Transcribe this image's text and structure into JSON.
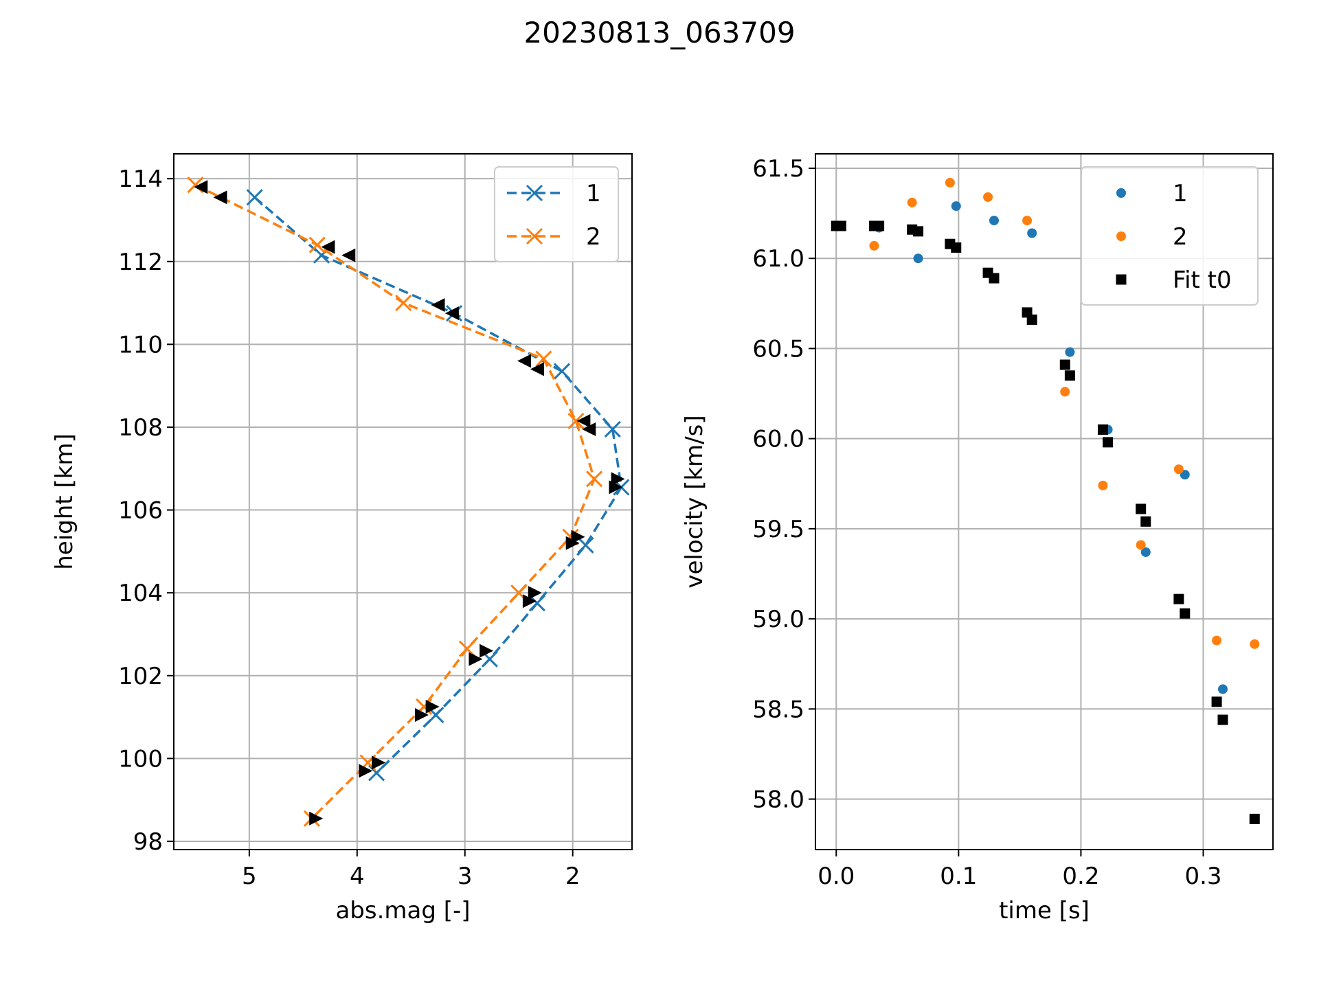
{
  "figure": {
    "title": "20230813_063709"
  },
  "colors": {
    "series1": "#1f77b4",
    "series2": "#ff7f0e",
    "fit": "#000000",
    "grid": "#b0b0b0"
  },
  "chart_data": [
    {
      "type": "line",
      "title": "",
      "xlabel": "abs.mag [-]",
      "ylabel": "height [km]",
      "xlim": [
        5.7,
        1.45
      ],
      "ylim": [
        97.8,
        114.6
      ],
      "x_inverted": true,
      "xticks": [
        5,
        4,
        3,
        2
      ],
      "xtick_labels": [
        "5",
        "4",
        "3",
        "2"
      ],
      "yticks": [
        98,
        100,
        102,
        104,
        106,
        108,
        110,
        112,
        114
      ],
      "ytick_labels": [
        "98",
        "100",
        "102",
        "104",
        "106",
        "108",
        "110",
        "112",
        "114"
      ],
      "grid": true,
      "legend_position": "upper right",
      "series": [
        {
          "name": "1",
          "style": "dashed line with x markers",
          "color": "#1f77b4",
          "x": [
            4.95,
            4.33,
            3.1,
            2.1,
            1.63,
            1.55,
            1.88,
            2.33,
            2.77,
            3.27,
            3.82
          ],
          "y": [
            113.55,
            112.15,
            110.75,
            109.35,
            107.95,
            106.55,
            105.15,
            103.75,
            102.4,
            101.05,
            99.65
          ]
        },
        {
          "name": "2",
          "style": "dashed line with x markers",
          "color": "#ff7f0e",
          "x": [
            5.5,
            4.37,
            3.57,
            2.27,
            1.97,
            1.8,
            2.02,
            2.5,
            2.98,
            3.38,
            3.9,
            4.42
          ],
          "y": [
            113.85,
            112.4,
            111.0,
            109.65,
            108.15,
            106.75,
            105.35,
            104.0,
            102.65,
            101.25,
            99.9,
            98.55
          ]
        },
        {
          "name": "",
          "style": "left-pointing triangle markers",
          "color": "#000000",
          "x": [
            5.45,
            5.27,
            4.27,
            4.08,
            3.25,
            3.12,
            2.45,
            2.33,
            1.9,
            1.85
          ],
          "y": [
            113.8,
            113.55,
            112.35,
            112.15,
            110.95,
            110.75,
            109.6,
            109.4,
            108.15,
            107.95
          ]
        },
        {
          "name": "",
          "style": "right-pointing triangle markers",
          "color": "#000000",
          "x": [
            1.58,
            1.6,
            1.95,
            2.0,
            2.35,
            2.4,
            2.8,
            2.9,
            3.3,
            3.4,
            3.8,
            3.92,
            4.38
          ],
          "y": [
            106.75,
            106.55,
            105.35,
            105.2,
            104.0,
            103.8,
            102.6,
            102.4,
            101.25,
            101.05,
            99.9,
            99.7,
            98.55
          ]
        }
      ]
    },
    {
      "type": "scatter",
      "title": "",
      "xlabel": "time [s]",
      "ylabel": "velocity [km/s]",
      "xlim": [
        -0.017,
        0.357
      ],
      "ylim": [
        57.72,
        61.58
      ],
      "xticks": [
        0.0,
        0.1,
        0.2,
        0.3
      ],
      "xtick_labels": [
        "0.0",
        "0.1",
        "0.2",
        "0.3"
      ],
      "yticks": [
        58.0,
        58.5,
        59.0,
        59.5,
        60.0,
        60.5,
        61.0,
        61.5
      ],
      "ytick_labels": [
        "58.0",
        "58.5",
        "59.0",
        "59.5",
        "60.0",
        "60.5",
        "61.0",
        "61.5"
      ],
      "grid": true,
      "legend_position": "upper right",
      "series": [
        {
          "name": "1",
          "marker": "circle",
          "color": "#1f77b4",
          "x": [
            0.0,
            0.035,
            0.067,
            0.098,
            0.129,
            0.16,
            0.191,
            0.222,
            0.253,
            0.285,
            0.316
          ],
          "y": [
            61.18,
            61.17,
            61.0,
            61.29,
            61.21,
            61.14,
            60.48,
            60.05,
            59.37,
            59.8,
            58.61
          ]
        },
        {
          "name": "2",
          "marker": "circle",
          "color": "#ff7f0e",
          "x": [
            0.0,
            0.031,
            0.062,
            0.093,
            0.124,
            0.156,
            0.187,
            0.218,
            0.249,
            0.28,
            0.311,
            0.342
          ],
          "y": [
            61.18,
            61.07,
            61.31,
            61.42,
            61.34,
            61.21,
            60.26,
            59.74,
            59.41,
            59.83,
            58.88,
            58.86
          ]
        },
        {
          "name": "Fit t0",
          "marker": "square",
          "color": "#000000",
          "x": [
            0.0,
            0.004,
            0.031,
            0.035,
            0.062,
            0.067,
            0.093,
            0.098,
            0.124,
            0.129,
            0.156,
            0.16,
            0.187,
            0.191,
            0.218,
            0.222,
            0.249,
            0.253,
            0.28,
            0.285,
            0.311,
            0.316,
            0.342
          ],
          "y": [
            61.18,
            61.18,
            61.18,
            61.18,
            61.16,
            61.15,
            61.08,
            61.06,
            60.92,
            60.89,
            60.7,
            60.66,
            60.41,
            60.35,
            60.05,
            59.98,
            59.61,
            59.54,
            59.11,
            59.03,
            58.54,
            58.44,
            57.89
          ]
        }
      ]
    }
  ]
}
